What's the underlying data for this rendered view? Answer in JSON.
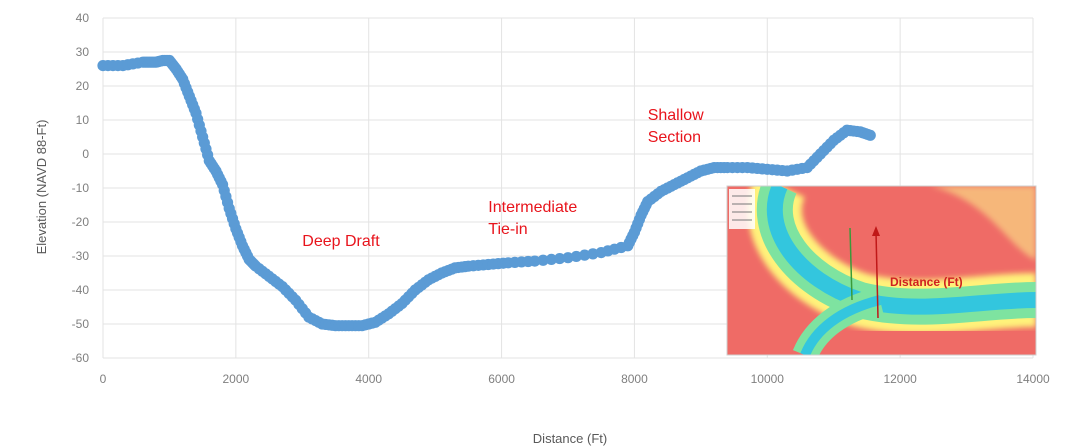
{
  "chart_data": {
    "type": "scatter",
    "title": "",
    "xlabel": "Distance (Ft)",
    "ylabel": "Elevation (NAVD 88-Ft)",
    "xlim": [
      0,
      14000
    ],
    "ylim": [
      -60,
      40
    ],
    "xticks": [
      0,
      2000,
      4000,
      6000,
      8000,
      10000,
      12000,
      14000
    ],
    "yticks": [
      -60,
      -50,
      -40,
      -30,
      -20,
      -10,
      0,
      10,
      20,
      30,
      40
    ],
    "grid": true,
    "marker_color": "#5b9bd5",
    "series": [
      {
        "x": [
          0,
          300,
          600,
          700,
          800,
          900,
          1000,
          1100,
          1200,
          1300,
          1400,
          1500,
          1600,
          1700,
          1800,
          1900,
          2000,
          2100,
          2200,
          2300,
          2500,
          2700,
          2900,
          3100,
          3300,
          3500,
          3700,
          3900,
          4100,
          4300,
          4500,
          4700,
          4900,
          5100,
          5300,
          5500,
          5800,
          6100,
          6500,
          7000,
          7500,
          7900,
          8000,
          8100,
          8200,
          8400,
          8600,
          8800,
          9000,
          9200,
          9400,
          9700,
          10000,
          10300,
          10600,
          10800,
          11000,
          11200,
          11400,
          11550
        ],
        "y": [
          26,
          26,
          27,
          27,
          27,
          27.5,
          27.5,
          25,
          22,
          17,
          12,
          5,
          -2,
          -5,
          -9,
          -16,
          -22,
          -27,
          -31,
          -33,
          -36,
          -39,
          -43,
          -48,
          -50,
          -50.5,
          -50.5,
          -50.5,
          -49.5,
          -47,
          -44,
          -40,
          -37,
          -35,
          -33.5,
          -33,
          -32.5,
          -32,
          -31.5,
          -30.5,
          -29,
          -27,
          -23,
          -18,
          -14,
          -11,
          -9,
          -7,
          -5,
          -4,
          -4,
          -4,
          -4.5,
          -5,
          -4,
          0,
          4,
          7,
          6.5,
          5.5
        ]
      }
    ],
    "annotations": [
      {
        "lines": [
          "Deep Draft"
        ],
        "x": 3000,
        "y": -27
      },
      {
        "lines": [
          "Intermediate",
          "Tie-in"
        ],
        "x": 5800,
        "y": -17
      },
      {
        "lines": [
          "Shallow",
          "Section"
        ],
        "x": 8200,
        "y": 10
      }
    ]
  },
  "inset": {
    "label": "Distance (Ft)",
    "colors": [
      "#ef6b66",
      "#f6b77a",
      "#fff27a",
      "#7ee3a0",
      "#33c6de"
    ]
  }
}
